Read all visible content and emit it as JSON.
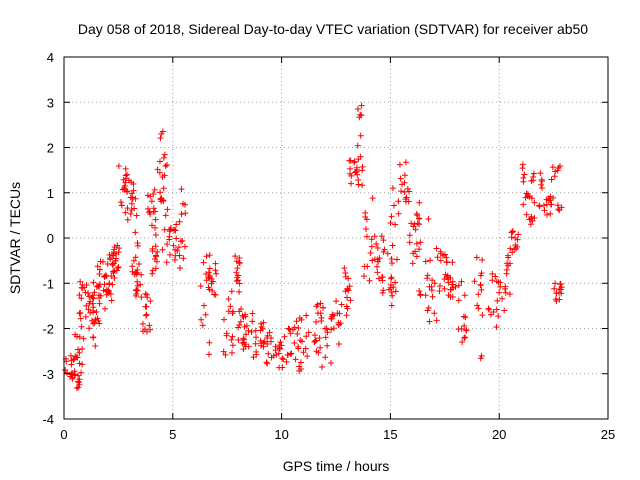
{
  "chart_data": {
    "type": "scatter",
    "title": "Day 058 of 2018, Sidereal Day-to-day VTEC variation (SDTVAR) for receiver ab50",
    "xlabel": "GPS time / hours",
    "ylabel": "SDTVAR / TECUs",
    "xlim": [
      0,
      25
    ],
    "ylim": [
      -4,
      4
    ],
    "xticks": [
      "0",
      "5",
      "10",
      "15",
      "20",
      "25"
    ],
    "yticks": [
      "4",
      "3",
      "2",
      "1",
      "0",
      "-1",
      "-2",
      "-3",
      "-4"
    ],
    "grid": true,
    "marker": "plus",
    "series": [
      {
        "name": "SDTVAR",
        "color": "#ff0000",
        "segments": [
          {
            "x": [
              0.0,
              0.5
            ],
            "y": [
              -3.2,
              -2.6
            ]
          },
          {
            "x": [
              0.3,
              0.8
            ],
            "y": [
              -3.4,
              -2.5
            ]
          },
          {
            "x": [
              0.5,
              1.0
            ],
            "y": [
              -2.8,
              -1.6
            ]
          },
          {
            "x": [
              0.7,
              1.2
            ],
            "y": [
              -1.9,
              -0.9
            ]
          },
          {
            "x": [
              1.0,
              1.5
            ],
            "y": [
              -2.0,
              -1.2
            ]
          },
          {
            "x": [
              1.3,
              1.7
            ],
            "y": [
              -2.4,
              -0.8
            ]
          },
          {
            "x": [
              1.5,
              2.0
            ],
            "y": [
              -1.6,
              -0.5
            ]
          },
          {
            "x": [
              1.8,
              2.2
            ],
            "y": [
              -1.4,
              -0.8
            ]
          },
          {
            "x": [
              2.0,
              2.4
            ],
            "y": [
              -1.1,
              -0.3
            ]
          },
          {
            "x": [
              2.2,
              2.6
            ],
            "y": [
              -0.8,
              -0.1
            ]
          },
          {
            "x": [
              2.5,
              3.0
            ],
            "y": [
              0.6,
              1.6
            ]
          },
          {
            "x": [
              2.8,
              3.2
            ],
            "y": [
              0.4,
              1.4
            ]
          },
          {
            "x": [
              3.1,
              3.4
            ],
            "y": [
              -0.9,
              0.9
            ]
          },
          {
            "x": [
              3.3,
              3.6
            ],
            "y": [
              -1.4,
              -0.5
            ]
          },
          {
            "x": [
              3.6,
              4.0
            ],
            "y": [
              -2.1,
              -1.2
            ]
          },
          {
            "x": [
              3.8,
              4.2
            ],
            "y": [
              0.1,
              1.1
            ]
          },
          {
            "x": [
              4.0,
              4.3
            ],
            "y": [
              -0.8,
              0.5
            ]
          },
          {
            "x": [
              4.3,
              4.6
            ],
            "y": [
              0.8,
              2.7
            ]
          },
          {
            "x": [
              4.5,
              4.9
            ],
            "y": [
              -0.6,
              1.9
            ]
          },
          {
            "x": [
              4.8,
              5.2
            ],
            "y": [
              -0.5,
              0.3
            ]
          },
          {
            "x": [
              5.2,
              5.6
            ],
            "y": [
              -0.9,
              1.1
            ]
          },
          {
            "x": [
              6.2,
              6.7
            ],
            "y": [
              -2.6,
              -0.3
            ]
          },
          {
            "x": [
              6.6,
              7.0
            ],
            "y": [
              -1.3,
              -0.5
            ]
          },
          {
            "x": [
              7.3,
              7.8
            ],
            "y": [
              -2.7,
              -1.3
            ]
          },
          {
            "x": [
              7.6,
              8.1
            ],
            "y": [
              -1.2,
              -0.3
            ]
          },
          {
            "x": [
              8.0,
              8.5
            ],
            "y": [
              -2.5,
              -1.4
            ]
          },
          {
            "x": [
              8.3,
              8.9
            ],
            "y": [
              -2.7,
              -1.6
            ]
          },
          {
            "x": [
              8.8,
              9.3
            ],
            "y": [
              -2.4,
              -1.8
            ]
          },
          {
            "x": [
              9.3,
              9.8
            ],
            "y": [
              -2.8,
              -2.0
            ]
          },
          {
            "x": [
              9.8,
              10.3
            ],
            "y": [
              -2.9,
              -2.1
            ]
          },
          {
            "x": [
              10.3,
              10.8
            ],
            "y": [
              -2.7,
              -1.8
            ]
          },
          {
            "x": [
              10.8,
              11.3
            ],
            "y": [
              -3.0,
              -1.6
            ]
          },
          {
            "x": [
              11.3,
              11.8
            ],
            "y": [
              -2.6,
              -1.4
            ]
          },
          {
            "x": [
              11.8,
              12.3
            ],
            "y": [
              -2.9,
              -1.5
            ]
          },
          {
            "x": [
              12.3,
              12.8
            ],
            "y": [
              -2.4,
              -1.3
            ]
          },
          {
            "x": [
              12.8,
              13.2
            ],
            "y": [
              -1.8,
              -0.6
            ]
          },
          {
            "x": [
              13.1,
              13.5
            ],
            "y": [
              1.2,
              1.8
            ]
          },
          {
            "x": [
              13.5,
              13.8
            ],
            "y": [
              1.0,
              3.0
            ]
          },
          {
            "x": [
              13.7,
              14.2
            ],
            "y": [
              -1.1,
              1.0
            ]
          },
          {
            "x": [
              14.2,
              14.7
            ],
            "y": [
              -1.0,
              0.2
            ]
          },
          {
            "x": [
              14.6,
              15.1
            ],
            "y": [
              -1.6,
              -0.2
            ]
          },
          {
            "x": [
              15.0,
              15.4
            ],
            "y": [
              -1.2,
              1.3
            ]
          },
          {
            "x": [
              15.4,
              15.9
            ],
            "y": [
              0.8,
              1.7
            ]
          },
          {
            "x": [
              15.8,
              16.3
            ],
            "y": [
              -0.6,
              0.6
            ]
          },
          {
            "x": [
              16.3,
              16.8
            ],
            "y": [
              -1.3,
              0.9
            ]
          },
          {
            "x": [
              16.7,
              17.2
            ],
            "y": [
              -1.9,
              -0.2
            ]
          },
          {
            "x": [
              17.2,
              17.6
            ],
            "y": [
              -1.2,
              -0.3
            ]
          },
          {
            "x": [
              17.6,
              18.0
            ],
            "y": [
              -1.4,
              -0.5
            ]
          },
          {
            "x": [
              18.1,
              18.5
            ],
            "y": [
              -2.3,
              -0.8
            ]
          },
          {
            "x": [
              18.8,
              19.3
            ],
            "y": [
              -2.7,
              -0.2
            ]
          },
          {
            "x": [
              19.5,
              20.0
            ],
            "y": [
              -2.0,
              -0.6
            ]
          },
          {
            "x": [
              20.0,
              20.5
            ],
            "y": [
              -1.7,
              -0.3
            ]
          },
          {
            "x": [
              20.4,
              21.0
            ],
            "y": [
              -0.4,
              0.2
            ]
          },
          {
            "x": [
              21.0,
              21.4
            ],
            "y": [
              0.4,
              1.9
            ]
          },
          {
            "x": [
              21.4,
              21.9
            ],
            "y": [
              0.3,
              1.6
            ]
          },
          {
            "x": [
              21.9,
              22.4
            ],
            "y": [
              0.5,
              1.4
            ]
          },
          {
            "x": [
              22.3,
              22.9
            ],
            "y": [
              0.6,
              1.6
            ]
          },
          {
            "x": [
              22.5,
              22.9
            ],
            "y": [
              -1.4,
              -1.0
            ]
          }
        ]
      }
    ]
  }
}
